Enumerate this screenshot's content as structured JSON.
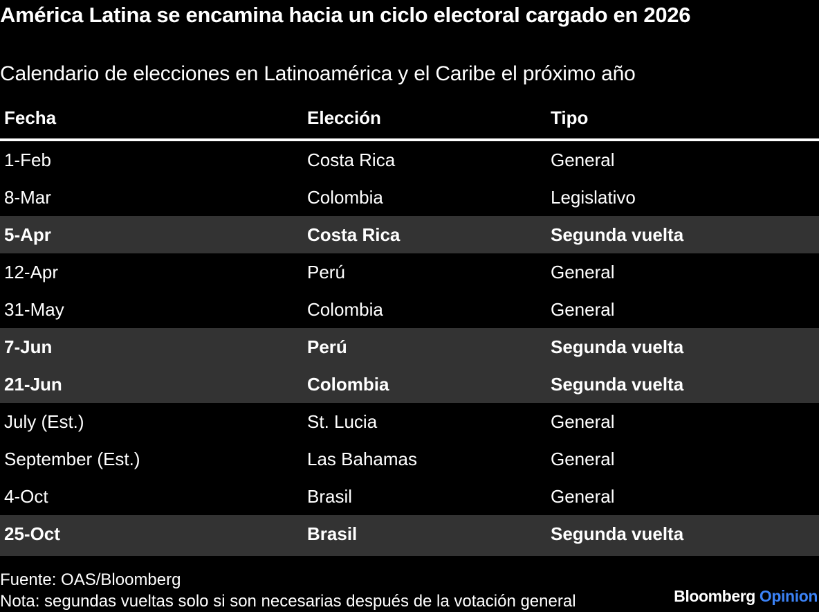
{
  "header": {
    "title": "América Latina se encamina hacia un ciclo electoral cargado en 2026",
    "subtitle": "Calendario de elecciones en Latinoamérica y el Caribe el próximo año"
  },
  "table": {
    "columns": [
      "Fecha",
      "Elección",
      "Tipo"
    ],
    "rows": [
      {
        "fecha": "1-Feb",
        "eleccion": "Costa Rica",
        "tipo": "General",
        "highlight": false
      },
      {
        "fecha": "8-Mar",
        "eleccion": "Colombia",
        "tipo": "Legislativo",
        "highlight": false
      },
      {
        "fecha": "5-Apr",
        "eleccion": "Costa Rica",
        "tipo": "Segunda vuelta",
        "highlight": true
      },
      {
        "fecha": "12-Apr",
        "eleccion": "Perú",
        "tipo": "General",
        "highlight": false
      },
      {
        "fecha": "31-May",
        "eleccion": "Colombia",
        "tipo": "General",
        "highlight": false
      },
      {
        "fecha": "7-Jun",
        "eleccion": "Perú",
        "tipo": "Segunda vuelta",
        "highlight": true
      },
      {
        "fecha": "21-Jun",
        "eleccion": "Colombia",
        "tipo": "Segunda vuelta",
        "highlight": true
      },
      {
        "fecha": "July (Est.)",
        "eleccion": "St. Lucia",
        "tipo": "General",
        "highlight": false
      },
      {
        "fecha": "September (Est.)",
        "eleccion": "Las Bahamas",
        "tipo": "General",
        "highlight": false
      },
      {
        "fecha": "4-Oct",
        "eleccion": "Brasil",
        "tipo": "General",
        "highlight": false
      },
      {
        "fecha": "25-Oct",
        "eleccion": "Brasil",
        "tipo": "Segunda vuelta",
        "highlight": true
      }
    ]
  },
  "footer": {
    "source": "Fuente: OAS/Bloomberg",
    "note": "Nota: segundas vueltas solo si son necesarias después de la votación general",
    "brand_primary": "Bloomberg",
    "brand_secondary": "Opinion"
  },
  "colors": {
    "background": "#000000",
    "highlight_row": "#333333",
    "text": "#ffffff",
    "brand_accent": "#3b82f6"
  }
}
